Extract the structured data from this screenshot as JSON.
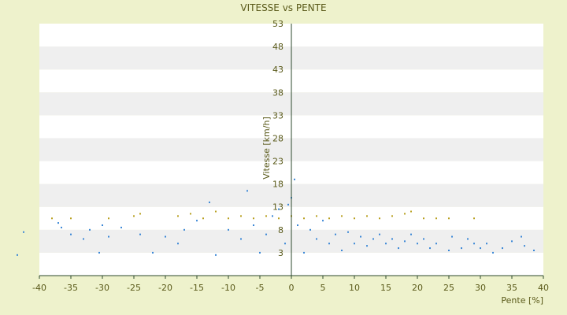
{
  "chart_data": {
    "type": "scatter",
    "title": "VITESSE vs PENTE",
    "xlabel": "Pente [%]",
    "ylabel": "Vitesse [km/h]",
    "xlim": [
      -40,
      40
    ],
    "ylim": [
      -2,
      53
    ],
    "x_ticks": [
      -40,
      -35,
      -30,
      -25,
      -20,
      -15,
      -10,
      -5,
      0,
      5,
      10,
      15,
      20,
      25,
      30,
      35,
      40
    ],
    "y_ticks": [
      3,
      8,
      13,
      18,
      23,
      28,
      33,
      38,
      43,
      48,
      53
    ],
    "grid": "alternating horizontal bands",
    "legend": "none",
    "colors": {
      "background": "#eef2cc",
      "plot_band_light": "#ffffff",
      "plot_band_dark": "#efefef",
      "blue_series": "#3a87d6",
      "yellow_series": "#b8a020",
      "axis": "#2d4a2d",
      "text": "#5a5a1a"
    },
    "series": [
      {
        "marker_color": "#3a87d6",
        "approximate_points": [
          [
            -43.5,
            2.5
          ],
          [
            -42.5,
            7.5
          ],
          [
            -37,
            9.5
          ],
          [
            -36.5,
            8.5
          ],
          [
            -35,
            7
          ],
          [
            -33,
            6
          ],
          [
            -32,
            8
          ],
          [
            -30.5,
            3
          ],
          [
            -30,
            9
          ],
          [
            -29,
            6.5
          ],
          [
            -27,
            8.5
          ],
          [
            -24,
            7
          ],
          [
            -22,
            3
          ],
          [
            -20,
            6.5
          ],
          [
            -18,
            5
          ],
          [
            -17,
            8
          ],
          [
            -15,
            10
          ],
          [
            -13,
            14
          ],
          [
            -12,
            2.5
          ],
          [
            -10,
            8
          ],
          [
            -8,
            6
          ],
          [
            -7,
            16.5
          ],
          [
            -6,
            9
          ],
          [
            -5,
            3
          ],
          [
            -4,
            7
          ],
          [
            -3,
            11
          ],
          [
            -2,
            12.5
          ],
          [
            -1,
            5
          ],
          [
            -0.5,
            13.5
          ],
          [
            0,
            15
          ],
          [
            0.5,
            19
          ],
          [
            1,
            9
          ],
          [
            2,
            3
          ],
          [
            3,
            8
          ],
          [
            4,
            6
          ],
          [
            5,
            10
          ],
          [
            6,
            5
          ],
          [
            7,
            7
          ],
          [
            8,
            3.5
          ],
          [
            9,
            7.5
          ],
          [
            10,
            5
          ],
          [
            11,
            6.5
          ],
          [
            12,
            4.5
          ],
          [
            13,
            6
          ],
          [
            14,
            7
          ],
          [
            15,
            5
          ],
          [
            16,
            6
          ],
          [
            17,
            4
          ],
          [
            18,
            5.5
          ],
          [
            19,
            7
          ],
          [
            20,
            5
          ],
          [
            21,
            6
          ],
          [
            22,
            4
          ],
          [
            23,
            5
          ],
          [
            25,
            3.5
          ],
          [
            25.5,
            6.5
          ],
          [
            27,
            4
          ],
          [
            28,
            6
          ],
          [
            29,
            5
          ],
          [
            30,
            4
          ],
          [
            31,
            5
          ],
          [
            32,
            3
          ],
          [
            33.5,
            4
          ],
          [
            35,
            5.5
          ],
          [
            36.5,
            6.5
          ],
          [
            37,
            4.5
          ],
          [
            38.5,
            3.5
          ]
        ]
      },
      {
        "marker_color": "#b8a020",
        "approximate_points": [
          [
            -38,
            10.5
          ],
          [
            -35,
            10.5
          ],
          [
            -29,
            10.5
          ],
          [
            -25,
            11
          ],
          [
            -24,
            11.5
          ],
          [
            -18,
            11
          ],
          [
            -16,
            11.5
          ],
          [
            -14,
            10.5
          ],
          [
            -12,
            12
          ],
          [
            -10,
            10.5
          ],
          [
            -8,
            11
          ],
          [
            -6,
            10.5
          ],
          [
            -4,
            11
          ],
          [
            -2,
            10.5
          ],
          [
            0,
            11
          ],
          [
            2,
            10.5
          ],
          [
            4,
            11
          ],
          [
            6,
            10.5
          ],
          [
            8,
            11
          ],
          [
            10,
            10.5
          ],
          [
            12,
            11
          ],
          [
            14,
            10.5
          ],
          [
            16,
            11
          ],
          [
            18,
            11.5
          ],
          [
            19,
            12
          ],
          [
            21,
            10.5
          ],
          [
            23,
            10.5
          ],
          [
            25,
            10.5
          ],
          [
            29,
            10.5
          ]
        ]
      }
    ]
  }
}
